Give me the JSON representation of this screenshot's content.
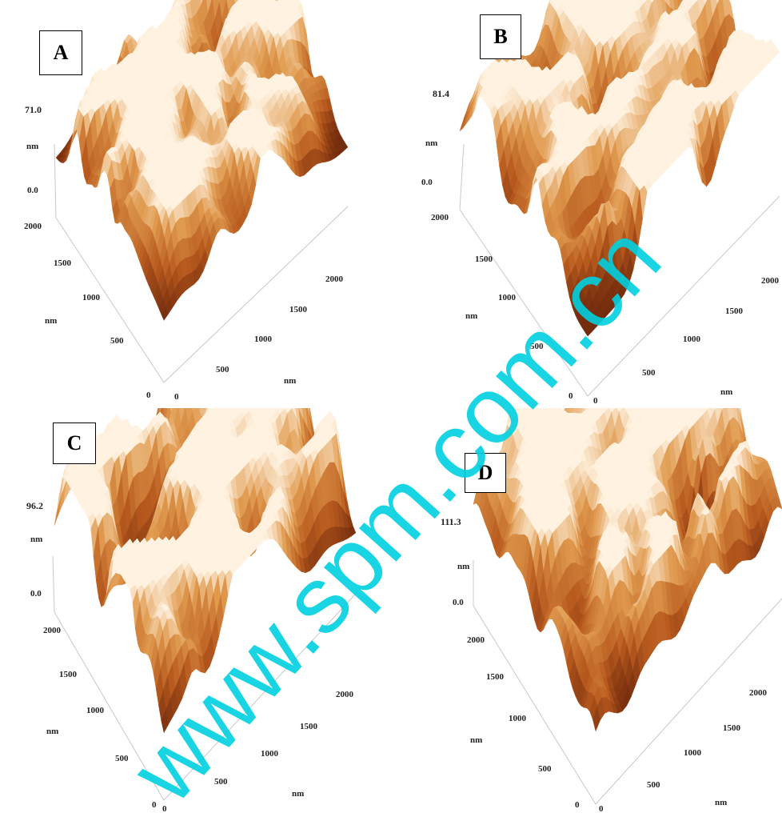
{
  "panels": [
    {
      "letter": "A",
      "z_max": "71.0",
      "z_unit": "nm",
      "z_min": "0.0",
      "y_ticks": [
        "2000",
        "1500",
        "1000",
        "500"
      ],
      "y_unit": "nm",
      "origin_left": "0",
      "origin_right": "0",
      "x_ticks": [
        "500",
        "1000",
        "1500",
        "2000"
      ],
      "x_unit": "nm"
    },
    {
      "letter": "B",
      "z_max": "81.4",
      "z_unit": "nm",
      "z_min": "0.0",
      "y_ticks": [
        "2000",
        "1500",
        "1000",
        "500"
      ],
      "y_unit": "nm",
      "origin_left": "0",
      "origin_right": "0",
      "x_ticks": [
        "500",
        "1000",
        "1500",
        "2000"
      ],
      "x_unit": "nm"
    },
    {
      "letter": "C",
      "z_max": "96.2",
      "z_unit": "nm",
      "z_min": "0.0",
      "y_ticks": [
        "2000",
        "1500",
        "1000",
        "500"
      ],
      "y_unit": "nm",
      "origin_left": "0",
      "origin_right": "0",
      "x_ticks": [
        "500",
        "1000",
        "1500",
        "2000"
      ],
      "x_unit": "nm"
    },
    {
      "letter": "D",
      "z_max": "111.3",
      "z_unit": "nm",
      "z_min": "0.0",
      "y_ticks": [
        "2000",
        "1500",
        "1000",
        "500"
      ],
      "y_unit": "nm",
      "origin_left": "0",
      "origin_right": "0",
      "x_ticks": [
        "500",
        "1000",
        "1500",
        "2000"
      ],
      "x_unit": "nm"
    }
  ],
  "surface_colors": {
    "dark": "#5a1a06",
    "mid": "#b85a1e",
    "light": "#e09a4e",
    "peak": "#fff2e0"
  },
  "watermark": {
    "text": "www.spm.com.cn",
    "color": "#00d0e0"
  }
}
